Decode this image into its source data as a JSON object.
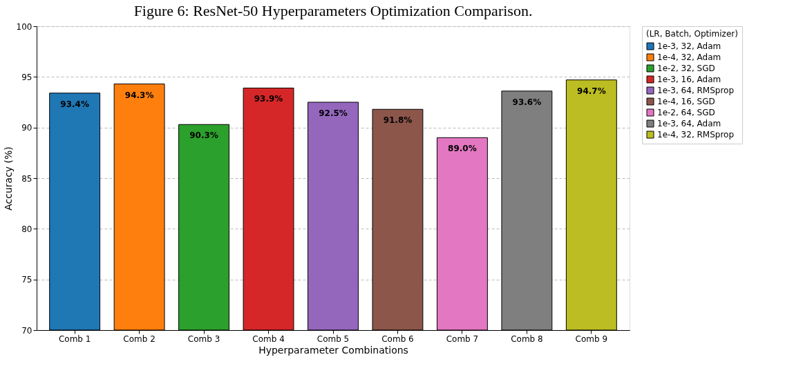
{
  "chart_data": {
    "type": "bar",
    "title": "Figure 6: ResNet-50 Hyperparameters Optimization Comparison.",
    "xlabel": "Hyperparameter Combinations",
    "ylabel": "Accuracy (%)",
    "legend_title": "(LR, Batch, Optimizer)",
    "categories": [
      "Comb 1",
      "Comb 2",
      "Comb 3",
      "Comb 4",
      "Comb 5",
      "Comb 6",
      "Comb 7",
      "Comb 8",
      "Comb 9"
    ],
    "series": [
      {
        "name": "1e-3, 32, Adam",
        "color": "#1f77b4",
        "values": [
          93.4,
          null,
          null,
          null,
          null,
          null,
          null,
          null,
          null
        ],
        "value_labels": [
          "93.4%",
          null,
          null,
          null,
          null,
          null,
          null,
          null,
          null
        ]
      },
      {
        "name": "1e-4, 32, Adam",
        "color": "#ff7f0e",
        "values": [
          null,
          94.3,
          null,
          null,
          null,
          null,
          null,
          null,
          null
        ],
        "value_labels": [
          null,
          "94.3%",
          null,
          null,
          null,
          null,
          null,
          null,
          null
        ]
      },
      {
        "name": "1e-2, 32, SGD",
        "color": "#2ca02c",
        "values": [
          null,
          null,
          90.3,
          null,
          null,
          null,
          null,
          null,
          null
        ],
        "value_labels": [
          null,
          null,
          "90.3%",
          null,
          null,
          null,
          null,
          null,
          null
        ]
      },
      {
        "name": "1e-3, 16, Adam",
        "color": "#d62728",
        "values": [
          null,
          null,
          null,
          93.9,
          null,
          null,
          null,
          null,
          null
        ],
        "value_labels": [
          null,
          null,
          null,
          "93.9%",
          null,
          null,
          null,
          null,
          null
        ]
      },
      {
        "name": "1e-3, 64, RMSprop",
        "color": "#9467bd",
        "values": [
          null,
          null,
          null,
          null,
          92.5,
          null,
          null,
          null,
          null
        ],
        "value_labels": [
          null,
          null,
          null,
          null,
          "92.5%",
          null,
          null,
          null,
          null
        ]
      },
      {
        "name": "1e-4, 16, SGD",
        "color": "#8c564b",
        "values": [
          null,
          null,
          null,
          null,
          null,
          91.8,
          null,
          null,
          null
        ],
        "value_labels": [
          null,
          null,
          null,
          null,
          null,
          "91.8%",
          null,
          null,
          null
        ]
      },
      {
        "name": "1e-2, 64, SGD",
        "color": "#e377c2",
        "values": [
          null,
          null,
          null,
          null,
          null,
          null,
          89.0,
          null,
          null
        ],
        "value_labels": [
          null,
          null,
          null,
          null,
          null,
          null,
          "89.0%",
          null,
          null
        ]
      },
      {
        "name": "1e-3, 64, Adam",
        "color": "#7f7f7f",
        "values": [
          null,
          null,
          null,
          null,
          null,
          null,
          null,
          93.6,
          null
        ],
        "value_labels": [
          null,
          null,
          null,
          null,
          null,
          null,
          null,
          "93.6%",
          null
        ]
      },
      {
        "name": "1e-4, 32, RMSprop",
        "color": "#bcbd22",
        "values": [
          null,
          null,
          null,
          null,
          null,
          null,
          null,
          null,
          94.7
        ],
        "value_labels": [
          null,
          null,
          null,
          null,
          null,
          null,
          null,
          null,
          "94.7%"
        ]
      }
    ],
    "ylim": [
      70,
      100
    ],
    "yticks": [
      70,
      75,
      80,
      85,
      90,
      95,
      100
    ],
    "grid": "y",
    "legend": "right"
  }
}
